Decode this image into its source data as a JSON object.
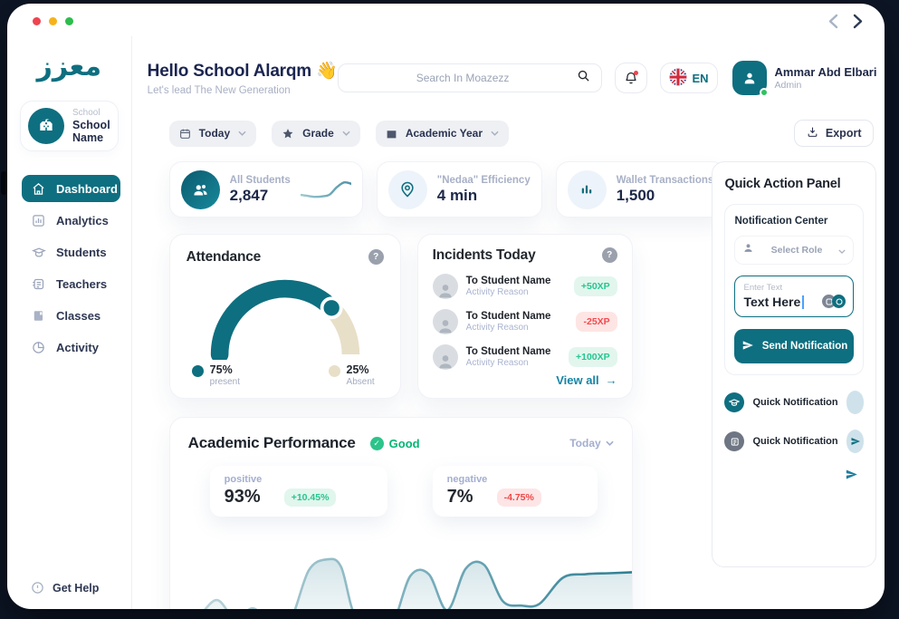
{
  "colors": {
    "accent_teal": "#0e6f80",
    "dark_navy_text": "#1b2550",
    "canvas_bg": "#0d1626",
    "green_positive": "#27c690",
    "red_negative": "#f4494d",
    "gauge_absent_beige": "#e8dfc8",
    "link_teal": "#1684a5",
    "good_green": "#01b574"
  },
  "window": {
    "nav_back": "chevron-left",
    "nav_forward": "chevron-right"
  },
  "sidebar": {
    "logo": "معزز",
    "school_card": {
      "label": "School",
      "name": "School Name"
    },
    "items": [
      {
        "label": "Dashboard",
        "active": true
      },
      {
        "label": "Analytics"
      },
      {
        "label": "Students"
      },
      {
        "label": "Teachers"
      },
      {
        "label": "Classes"
      },
      {
        "label": "Activity"
      }
    ],
    "get_help": "Get Help"
  },
  "header": {
    "greeting": "Hello School Alarqm",
    "wave_emoji": "👋",
    "subtitle": "Let's lead The New Generation",
    "search_placeholder": "Search In Moazezz",
    "language": "EN",
    "user": {
      "name": "Ammar Abd Elbari",
      "role": "Admin"
    }
  },
  "filters": {
    "chips": [
      {
        "label": "Today"
      },
      {
        "label": "Grade"
      },
      {
        "label": "Academic Year"
      }
    ],
    "export_label": "Export"
  },
  "stats": [
    {
      "label": "All Students",
      "value": "2,847"
    },
    {
      "label": "\"Nedaa\" Efficiency",
      "value": "4 min"
    },
    {
      "label": "Wallet Transactions",
      "value": "1,500"
    }
  ],
  "attendance": {
    "title": "Attendance",
    "present": {
      "pct": "75%",
      "label": "present"
    },
    "absent": {
      "pct": "25%",
      "label": "Absent"
    }
  },
  "incidents": {
    "title": "Incidents Today",
    "rows": [
      {
        "name": "To Student Name",
        "reason": "Activity Reason",
        "xp": "+50XP",
        "type": "positive"
      },
      {
        "name": "To Student Name",
        "reason": "Activity Reason",
        "xp": "-25XP",
        "type": "negative"
      },
      {
        "name": "To Student Name",
        "reason": "Activity Reason",
        "xp": "+100XP",
        "type": "positive"
      }
    ],
    "view_all": "View all",
    "arrow": "→"
  },
  "quick_panel": {
    "title": "Quick Action Panel",
    "notification_center": "Notification Center",
    "select_role": "Select Role",
    "input_label": "Enter Text",
    "input_value": "Text Here",
    "send_label": "Send Notification",
    "quick_items": [
      {
        "label": "Quick Notification"
      },
      {
        "label": "Quick Notification"
      }
    ]
  },
  "performance": {
    "title": "Academic Performance",
    "status": "Good",
    "period": "Today",
    "positive": {
      "label": "positive",
      "value": "93%",
      "change": "+10.45%"
    },
    "negative": {
      "label": "negative",
      "value": "7%",
      "change": "-4.75%"
    }
  },
  "chart_data": [
    {
      "type": "area",
      "title": "Academic Performance trend",
      "x": [
        0,
        5,
        10,
        14,
        18,
        22,
        26,
        30,
        34,
        37,
        40,
        44,
        48,
        52,
        56,
        60,
        64,
        68,
        72,
        76,
        80,
        85,
        90,
        95,
        100
      ],
      "values": [
        30,
        24,
        46,
        26,
        37,
        20,
        24,
        78,
        90,
        82,
        30,
        34,
        20,
        72,
        74,
        35,
        80,
        84,
        45,
        40,
        42,
        70,
        74,
        75,
        76
      ],
      "ylim": [
        0,
        100
      ],
      "axes_labeled": false,
      "grid": false,
      "legend": "none"
    },
    {
      "type": "gauge",
      "title": "Attendance",
      "segments": [
        {
          "label": "present",
          "value": 75
        },
        {
          "label": "Absent",
          "value": 25
        }
      ]
    },
    {
      "type": "sparkline",
      "title": "All Students trend",
      "values": [
        25,
        20,
        16,
        18,
        26,
        60,
        82,
        76
      ]
    }
  ]
}
